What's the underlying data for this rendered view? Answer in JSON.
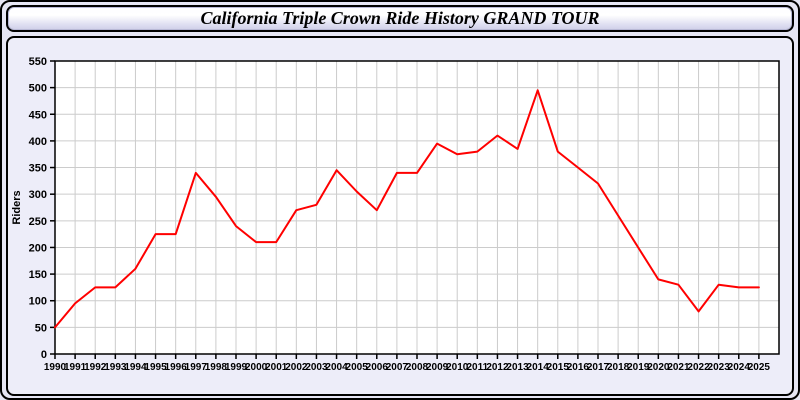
{
  "header": {
    "title": "California Triple Crown Ride History GRAND TOUR"
  },
  "chart_data": {
    "type": "line",
    "title": "California Triple Crown Ride History GRAND TOUR",
    "xlabel": "",
    "ylabel": "Riders",
    "categories": [
      "1990",
      "1991",
      "1992",
      "1993",
      "1994",
      "1995",
      "1996",
      "1997",
      "1998",
      "1999",
      "2000",
      "2001",
      "2002",
      "2003",
      "2004",
      "2005",
      "2006",
      "2007",
      "2008",
      "2009",
      "2010",
      "2011",
      "2012",
      "2013",
      "2014",
      "2015",
      "2016",
      "2017",
      "2018",
      "2019",
      "2020",
      "2021",
      "2022",
      "2023",
      "2024",
      "2025"
    ],
    "series": [
      {
        "name": "Riders",
        "values": [
          50,
          95,
          125,
          125,
          160,
          225,
          225,
          340,
          295,
          240,
          210,
          210,
          270,
          280,
          345,
          305,
          270,
          340,
          340,
          395,
          375,
          380,
          410,
          385,
          495,
          380,
          350,
          320,
          260,
          200,
          140,
          130,
          80,
          130,
          125,
          125
        ]
      }
    ],
    "ylim": [
      0,
      550
    ],
    "ytick_step": 50,
    "grid": true,
    "legend_position": "none",
    "colors": {
      "line": "#ff0000",
      "grid": "#cccccc",
      "axis_frame": "#000000",
      "tick_label": "#000000",
      "plot_background": "#ffffff",
      "panel_background": "#ededf9",
      "page_background": "#e6e6f5"
    }
  }
}
